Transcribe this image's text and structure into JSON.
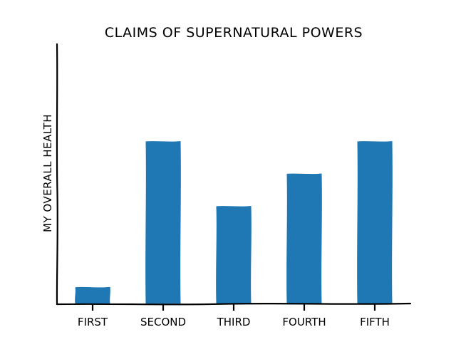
{
  "chart_data": {
    "type": "bar",
    "title": "CLAIMS OF SUPERNATURAL POWERS",
    "xlabel": "",
    "ylabel": "MY OVERALL HEALTH",
    "categories": [
      "FIRST",
      "SECOND",
      "THIRD",
      "FOURTH",
      "FIFTH"
    ],
    "values": [
      10,
      100,
      60,
      80,
      100
    ],
    "ylim": [
      0,
      160
    ],
    "bar_color": "#1f77b4",
    "grid": false,
    "legend": "none"
  }
}
